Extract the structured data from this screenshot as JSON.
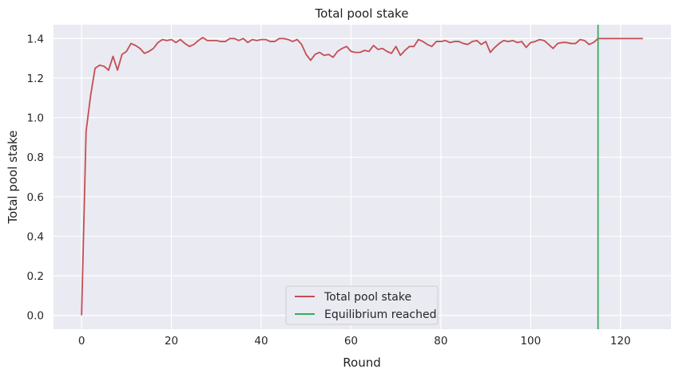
{
  "chart_data": {
    "type": "line",
    "title": "Total pool stake",
    "xlabel": "Round",
    "ylabel": "Total pool stake",
    "xlim": [
      -6.25,
      131.25
    ],
    "ylim": [
      -0.07,
      1.47
    ],
    "xticks": [
      0,
      20,
      40,
      60,
      80,
      100,
      120
    ],
    "yticks": [
      0.0,
      0.2,
      0.4,
      0.6,
      0.8,
      1.0,
      1.2,
      1.4
    ],
    "xtick_labels": [
      "0",
      "20",
      "40",
      "60",
      "80",
      "100",
      "120"
    ],
    "ytick_labels": [
      "0.0",
      "0.2",
      "0.4",
      "0.6",
      "0.8",
      "1.0",
      "1.2",
      "1.4"
    ],
    "grid": true,
    "background": "#eaeaf2",
    "legend_position": "lower-center",
    "series": [
      {
        "name": "Total pool stake",
        "color": "#c44e52",
        "x": [
          0,
          1,
          2,
          3,
          4,
          5,
          6,
          7,
          8,
          9,
          10,
          11,
          12,
          13,
          14,
          15,
          16,
          17,
          18,
          19,
          20,
          21,
          22,
          23,
          24,
          25,
          26,
          27,
          28,
          29,
          30,
          31,
          32,
          33,
          34,
          35,
          36,
          37,
          38,
          39,
          40,
          41,
          42,
          43,
          44,
          45,
          46,
          47,
          48,
          49,
          50,
          51,
          52,
          53,
          54,
          55,
          56,
          57,
          58,
          59,
          60,
          61,
          62,
          63,
          64,
          65,
          66,
          67,
          68,
          69,
          70,
          71,
          72,
          73,
          74,
          75,
          76,
          77,
          78,
          79,
          80,
          81,
          82,
          83,
          84,
          85,
          86,
          87,
          88,
          89,
          90,
          91,
          92,
          93,
          94,
          95,
          96,
          97,
          98,
          99,
          100,
          101,
          102,
          103,
          104,
          105,
          106,
          107,
          108,
          109,
          110,
          111,
          112,
          113,
          114,
          115,
          116,
          117,
          118,
          119,
          120,
          121,
          122,
          123,
          124,
          125
        ],
        "y": [
          0.0,
          0.93,
          1.11,
          1.25,
          1.265,
          1.26,
          1.24,
          1.31,
          1.24,
          1.32,
          1.335,
          1.375,
          1.365,
          1.35,
          1.325,
          1.335,
          1.35,
          1.38,
          1.395,
          1.39,
          1.395,
          1.38,
          1.395,
          1.375,
          1.36,
          1.37,
          1.39,
          1.405,
          1.39,
          1.39,
          1.39,
          1.385,
          1.385,
          1.4,
          1.4,
          1.39,
          1.4,
          1.38,
          1.395,
          1.39,
          1.395,
          1.395,
          1.385,
          1.385,
          1.4,
          1.4,
          1.395,
          1.385,
          1.395,
          1.37,
          1.32,
          1.29,
          1.32,
          1.33,
          1.315,
          1.32,
          1.305,
          1.335,
          1.35,
          1.36,
          1.335,
          1.33,
          1.33,
          1.34,
          1.335,
          1.365,
          1.345,
          1.35,
          1.335,
          1.325,
          1.36,
          1.315,
          1.34,
          1.36,
          1.36,
          1.395,
          1.385,
          1.37,
          1.36,
          1.385,
          1.385,
          1.39,
          1.38,
          1.385,
          1.385,
          1.375,
          1.37,
          1.385,
          1.39,
          1.37,
          1.385,
          1.33,
          1.355,
          1.375,
          1.39,
          1.385,
          1.39,
          1.38,
          1.385,
          1.355,
          1.38,
          1.385,
          1.395,
          1.39,
          1.37,
          1.35,
          1.375,
          1.38,
          1.38,
          1.375,
          1.375,
          1.395,
          1.39,
          1.37,
          1.38,
          1.4,
          1.4,
          1.4,
          1.4,
          1.4,
          1.4,
          1.4,
          1.4,
          1.4,
          1.4,
          1.4
        ]
      },
      {
        "name": "Equilibrium reached",
        "color": "#3aaa60",
        "type": "vline",
        "x": 115
      }
    ]
  }
}
